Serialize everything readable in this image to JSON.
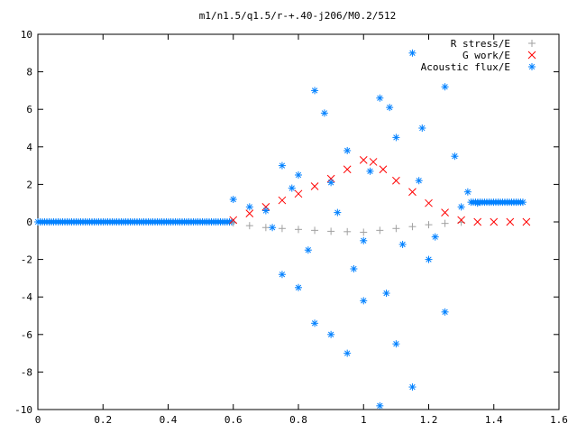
{
  "chart_data": {
    "type": "scatter",
    "title": "m1/n1.5/q1.5/r-+.40-j206/M0.2/512",
    "xlabel": "",
    "ylabel": "",
    "xlim": [
      0,
      1.6
    ],
    "ylim": [
      -10,
      10
    ],
    "x_ticks": [
      "0",
      "0.2",
      "0.4",
      "0.6",
      "0.8",
      "1",
      "1.2",
      "1.4",
      "1.6"
    ],
    "y_ticks": [
      "10",
      "8",
      "6",
      "4",
      "2",
      "0",
      "-2",
      "-4",
      "-6",
      "-8",
      "-10"
    ],
    "grid": false,
    "legend_position": "top-right",
    "series": [
      {
        "name": "R stress/E",
        "marker": "plus",
        "color": "#a0a0a0",
        "points": [
          [
            0.6,
            -0.05
          ],
          [
            0.65,
            -0.2
          ],
          [
            0.7,
            -0.3
          ],
          [
            0.75,
            -0.35
          ],
          [
            0.8,
            -0.4
          ],
          [
            0.85,
            -0.45
          ],
          [
            0.9,
            -0.5
          ],
          [
            0.95,
            -0.52
          ],
          [
            1.0,
            -0.55
          ],
          [
            1.05,
            -0.45
          ],
          [
            1.1,
            -0.35
          ],
          [
            1.15,
            -0.25
          ],
          [
            1.2,
            -0.15
          ],
          [
            1.25,
            -0.08
          ],
          [
            1.3,
            -0.02
          ]
        ]
      },
      {
        "name": "G work/E",
        "marker": "cross",
        "color": "#ff0000",
        "points": [
          [
            0.6,
            0.1
          ],
          [
            0.65,
            0.45
          ],
          [
            0.7,
            0.8
          ],
          [
            0.75,
            1.15
          ],
          [
            0.8,
            1.5
          ],
          [
            0.85,
            1.9
          ],
          [
            0.9,
            2.3
          ],
          [
            0.95,
            2.8
          ],
          [
            1.0,
            3.3
          ],
          [
            1.03,
            3.2
          ],
          [
            1.06,
            2.8
          ],
          [
            1.1,
            2.2
          ],
          [
            1.15,
            1.6
          ],
          [
            1.2,
            1.0
          ],
          [
            1.25,
            0.5
          ],
          [
            1.3,
            0.1
          ],
          [
            1.35,
            0.0
          ],
          [
            1.4,
            0.0
          ],
          [
            1.45,
            0.0
          ],
          [
            1.5,
            0.0
          ]
        ]
      },
      {
        "name": "Acoustic flux/E",
        "marker": "star",
        "color": "#0080ff",
        "points": [
          [
            0.6,
            1.2
          ],
          [
            0.65,
            0.8
          ],
          [
            0.7,
            0.6
          ],
          [
            0.75,
            3.0
          ],
          [
            0.8,
            2.5
          ],
          [
            0.85,
            7.0
          ],
          [
            0.88,
            5.8
          ],
          [
            0.9,
            2.1
          ],
          [
            0.95,
            3.8
          ],
          [
            1.0,
            -1.0
          ],
          [
            1.05,
            6.6
          ],
          [
            1.08,
            6.1
          ],
          [
            1.1,
            4.5
          ],
          [
            1.15,
            9.0
          ],
          [
            1.18,
            5.0
          ],
          [
            1.25,
            7.2
          ],
          [
            1.3,
            0.8
          ],
          [
            1.35,
            1.0
          ],
          [
            0.75,
            -2.8
          ],
          [
            0.8,
            -3.5
          ],
          [
            0.85,
            -5.4
          ],
          [
            0.9,
            -6.0
          ],
          [
            0.95,
            -7.0
          ],
          [
            1.0,
            -4.2
          ],
          [
            1.05,
            -9.8
          ],
          [
            1.1,
            -6.5
          ],
          [
            1.15,
            -8.8
          ],
          [
            1.2,
            -2.0
          ],
          [
            1.25,
            -4.8
          ],
          [
            0.72,
            -0.3
          ],
          [
            0.78,
            1.8
          ],
          [
            0.83,
            -1.5
          ],
          [
            0.92,
            0.5
          ],
          [
            0.97,
            -2.5
          ],
          [
            1.02,
            2.7
          ],
          [
            1.07,
            -3.8
          ],
          [
            1.12,
            -1.2
          ],
          [
            1.17,
            2.2
          ],
          [
            1.22,
            -0.8
          ],
          [
            1.28,
            3.5
          ],
          [
            1.32,
            1.6
          ]
        ]
      }
    ],
    "baseline": {
      "series": "Acoustic flux/E",
      "x_range": [
        0,
        0.6
      ],
      "y": 0
    },
    "tail": {
      "series": "Acoustic flux/E",
      "x_range": [
        1.33,
        1.49
      ],
      "y": 1.05
    }
  }
}
